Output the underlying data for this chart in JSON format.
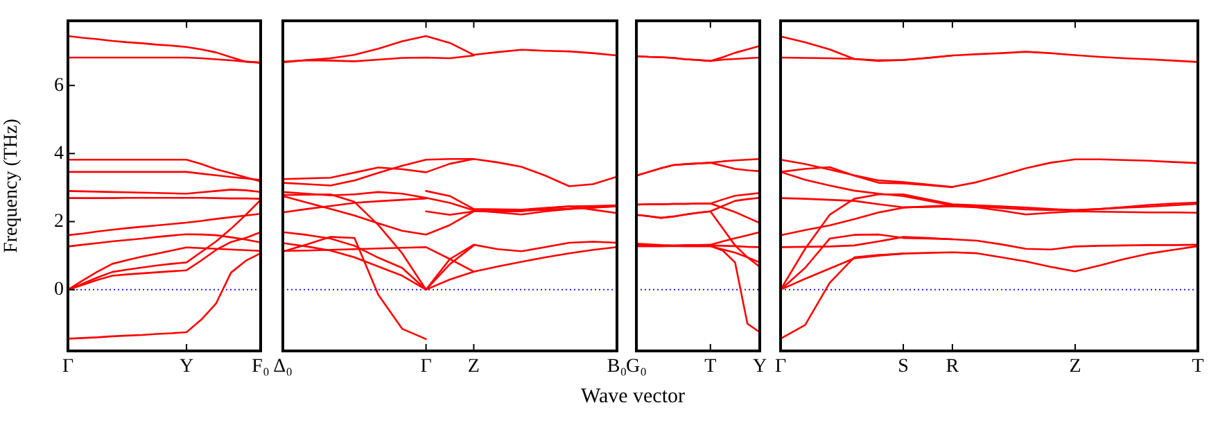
{
  "chart_data": [
    {
      "type": "line",
      "ylabel": "Frequency (THz)",
      "categories": [
        "Γ",
        null,
        null,
        null,
        null,
        null,
        null,
        null,
        "Y",
        null,
        null,
        null,
        null,
        "F₀"
      ],
      "ylim": [
        -1.8,
        7.9
      ],
      "yticks": [
        0,
        2,
        4,
        6
      ],
      "ref_lines": [
        {
          "axis": "y",
          "value": 0,
          "color": "#0000ff",
          "line_style": "dotted"
        }
      ],
      "series": [
        {
          "color": "#ff0000",
          "values": [
            7.45,
            7.4,
            7.36,
            7.31,
            7.27,
            7.24,
            7.2,
            7.17,
            7.13,
            7.06,
            6.97,
            6.83,
            6.7,
            6.67
          ]
        },
        {
          "color": "#ff0000",
          "values": [
            6.82,
            6.82,
            6.82,
            6.82,
            6.82,
            6.82,
            6.82,
            6.82,
            6.82,
            6.8,
            6.77,
            6.74,
            6.7,
            6.67
          ]
        },
        {
          "color": "#ff0000",
          "values": [
            3.82,
            3.82,
            3.82,
            3.82,
            3.82,
            3.82,
            3.82,
            3.82,
            3.82,
            3.69,
            3.54,
            3.42,
            3.3,
            3.18
          ]
        },
        {
          "color": "#ff0000",
          "values": [
            3.46,
            3.46,
            3.46,
            3.46,
            3.46,
            3.46,
            3.46,
            3.46,
            3.46,
            3.41,
            3.36,
            3.31,
            3.27,
            3.22
          ]
        },
        {
          "color": "#ff0000",
          "values": [
            2.9,
            2.89,
            2.88,
            2.87,
            2.86,
            2.85,
            2.84,
            2.83,
            2.82,
            2.86,
            2.9,
            2.94,
            2.92,
            2.87
          ]
        },
        {
          "color": "#ff0000",
          "values": [
            2.69,
            2.69,
            2.69,
            2.69,
            2.7,
            2.7,
            2.7,
            2.7,
            2.7,
            2.7,
            2.69,
            2.68,
            2.68,
            2.67
          ]
        },
        {
          "color": "#ff0000",
          "values": [
            1.6,
            1.65,
            1.71,
            1.76,
            1.81,
            1.85,
            1.89,
            1.93,
            1.97,
            2.02,
            2.08,
            2.13,
            2.18,
            2.23
          ]
        },
        {
          "color": "#ff0000",
          "values": [
            1.27,
            1.32,
            1.37,
            1.42,
            1.46,
            1.5,
            1.55,
            1.59,
            1.63,
            1.62,
            1.6,
            1.54,
            1.47,
            1.39
          ]
        },
        {
          "color": "#ff0000",
          "values": [
            0,
            0.27,
            0.53,
            0.76,
            0.87,
            0.97,
            1.06,
            1.15,
            1.24,
            1.22,
            1.2,
            1.18,
            1.16,
            1.14
          ]
        },
        {
          "color": "#ff0000",
          "values": [
            0,
            0.18,
            0.36,
            0.52,
            0.59,
            0.65,
            0.71,
            0.76,
            0.8,
            1.11,
            1.42,
            1.79,
            2.2,
            2.64
          ]
        },
        {
          "color": "#ff0000",
          "values": [
            0,
            0.14,
            0.29,
            0.41,
            0.45,
            0.48,
            0.51,
            0.54,
            0.57,
            0.86,
            1.17,
            1.4,
            1.52,
            1.69
          ]
        },
        {
          "color": "#ff0000",
          "values": [
            -1.44,
            -1.42,
            -1.4,
            -1.37,
            -1.35,
            -1.33,
            -1.3,
            -1.28,
            -1.25,
            -0.88,
            -0.4,
            0.5,
            0.85,
            1.07
          ]
        }
      ]
    },
    {
      "type": "line",
      "xlabel": "Wave vector",
      "categories": [
        "Δ₀",
        null,
        null,
        null,
        null,
        null,
        "Γ",
        null,
        "Z",
        null,
        null,
        null,
        null,
        null,
        "B₀"
      ],
      "ylim": [
        -1.8,
        7.9
      ],
      "yticks": [
        0,
        2,
        4,
        6
      ],
      "tick_labels": "x",
      "ref_lines": [
        {
          "axis": "y",
          "value": 0,
          "color": "#0000ff",
          "line_style": "dotted"
        }
      ],
      "series": [
        {
          "color": "#ff0000",
          "values": [
            6.68,
            6.75,
            6.8,
            6.9,
            7.08,
            7.3,
            7.45,
            7.25,
            6.9,
            6.98,
            7.05,
            7.02,
            7.0,
            6.95,
            6.88
          ]
        },
        {
          "color": "#ff0000",
          "values": [
            6.7,
            6.74,
            6.73,
            6.71,
            6.76,
            6.81,
            6.82,
            6.8,
            6.88,
            null,
            null,
            null,
            null,
            null,
            null
          ]
        },
        {
          "color": "#ff0000",
          "values": [
            3.25,
            3.27,
            3.29,
            3.44,
            3.59,
            3.54,
            3.45,
            3.7,
            3.84,
            3.74,
            3.61,
            3.35,
            3.04,
            3.1,
            3.32
          ]
        },
        {
          "color": "#ff0000",
          "values": [
            3.14,
            3.1,
            3.06,
            3.21,
            3.43,
            3.64,
            3.82,
            3.84,
            3.84,
            null,
            null,
            null,
            null,
            null,
            null
          ]
        },
        {
          "color": "#ff0000",
          "values": [
            2.87,
            2.82,
            2.77,
            2.8,
            2.87,
            2.82,
            2.7,
            2.55,
            2.33,
            2.27,
            2.21,
            2.3,
            2.37,
            2.41,
            2.45
          ]
        },
        {
          "color": "#ff0000",
          "values": [
            2.78,
            2.79,
            2.8,
            2.58,
            1.9,
            1.07,
            0,
            0.9,
            1.32,
            1.19,
            1.13,
            1.25,
            1.38,
            1.41,
            1.38
          ]
        },
        {
          "color": "#ff0000",
          "values": [
            2.27,
            2.37,
            2.46,
            2.55,
            2.6,
            2.64,
            2.68,
            null,
            null,
            null,
            null,
            null,
            null,
            null,
            null
          ]
        },
        {
          "color": "#ff0000",
          "values": [
            2.75,
            2.56,
            2.37,
            2.18,
            1.95,
            1.73,
            1.62,
            1.9,
            2.3,
            2.31,
            2.32,
            2.35,
            2.38,
            2.42,
            2.45
          ]
        },
        {
          "color": "#ff0000",
          "values": [
            1.69,
            1.61,
            1.5,
            1.29,
            0.94,
            0.64,
            0,
            0.75,
            1.3,
            null,
            null,
            null,
            null,
            null,
            null
          ]
        },
        {
          "color": "#ff0000",
          "values": [
            1.37,
            1.27,
            1.15,
            0.95,
            0.68,
            0.41,
            0,
            0.3,
            0.53,
            0.68,
            0.82,
            0.95,
            1.07,
            1.17,
            1.25
          ]
        },
        {
          "color": "#ff0000",
          "values": [
            1.12,
            1.33,
            1.55,
            1.52,
            -0.15,
            -1.15,
            -1.45,
            null,
            null,
            null,
            null,
            null,
            null,
            null,
            null
          ]
        },
        {
          "color": "#ff0000",
          "values": [
            1.14,
            1.15,
            1.17,
            1.19,
            1.21,
            1.23,
            1.25,
            0.9,
            0.53,
            null,
            null,
            null,
            null,
            null,
            null
          ]
        },
        {
          "color": "#ff0000",
          "values": [
            null,
            null,
            null,
            null,
            null,
            null,
            2.9,
            2.75,
            2.37,
            2.36,
            2.35,
            2.4,
            2.45,
            2.46,
            2.48
          ]
        },
        {
          "color": "#ff0000",
          "values": [
            null,
            null,
            null,
            null,
            null,
            null,
            2.3,
            2.2,
            2.3,
            2.3,
            2.3,
            2.39,
            2.45,
            2.35,
            2.25
          ]
        }
      ]
    },
    {
      "type": "line",
      "categories": [
        "G₀",
        null,
        null,
        null,
        null,
        null,
        "T",
        null,
        null,
        null,
        "Y"
      ],
      "ylim": [
        -1.8,
        7.9
      ],
      "yticks": [
        0,
        2,
        4,
        6
      ],
      "tick_labels": "x",
      "ref_lines": [
        {
          "axis": "y",
          "value": 0,
          "color": "#0000ff",
          "line_style": "dotted"
        }
      ],
      "series": [
        {
          "color": "#ff0000",
          "values": [
            6.86,
            6.84,
            6.83,
            6.81,
            6.77,
            6.75,
            6.72,
            6.83,
            6.96,
            7.06,
            7.16
          ]
        },
        {
          "color": "#ff0000",
          "values": [
            6.86,
            6.84,
            6.83,
            6.81,
            6.77,
            6.75,
            6.72,
            6.76,
            6.78,
            6.8,
            6.82
          ]
        },
        {
          "color": "#ff0000",
          "values": [
            3.35,
            3.46,
            3.57,
            3.66,
            3.69,
            3.71,
            3.73,
            3.77,
            3.8,
            3.82,
            3.84
          ]
        },
        {
          "color": "#ff0000",
          "values": [
            3.35,
            3.46,
            3.57,
            3.66,
            3.69,
            3.71,
            3.73,
            3.64,
            3.55,
            3.51,
            3.48
          ]
        },
        {
          "color": "#ff0000",
          "values": [
            2.5,
            2.51,
            2.51,
            2.52,
            2.52,
            2.53,
            2.53,
            2.65,
            2.76,
            2.8,
            2.84
          ]
        },
        {
          "color": "#ff0000",
          "values": [
            2.5,
            2.51,
            2.51,
            2.52,
            2.52,
            2.53,
            2.53,
            2.41,
            2.28,
            2.12,
            1.96
          ]
        },
        {
          "color": "#ff0000",
          "values": [
            2.2,
            2.16,
            2.11,
            2.15,
            2.21,
            2.26,
            2.3,
            2.46,
            2.61,
            2.66,
            2.7
          ]
        },
        {
          "color": "#ff0000",
          "values": [
            2.2,
            2.16,
            2.11,
            2.15,
            2.21,
            2.26,
            2.3,
            1.8,
            1.3,
            0.95,
            0.67
          ]
        },
        {
          "color": "#ff0000",
          "values": [
            1.35,
            1.33,
            1.31,
            1.3,
            1.31,
            1.31,
            1.32,
            1.42,
            1.51,
            1.6,
            1.69
          ]
        },
        {
          "color": "#ff0000",
          "values": [
            1.28,
            1.28,
            1.28,
            1.29,
            1.29,
            1.3,
            1.3,
            1.29,
            1.28,
            1.26,
            1.25
          ]
        },
        {
          "color": "#ff0000",
          "values": [
            1.3,
            1.3,
            1.29,
            1.29,
            1.28,
            1.28,
            1.28,
            1.18,
            1.09,
            0.95,
            0.8
          ]
        },
        {
          "color": "#ff0000",
          "values": [
            1.28,
            1.28,
            1.28,
            1.28,
            1.28,
            1.28,
            1.28,
            1.15,
            0.8,
            -1.0,
            -1.25
          ]
        }
      ]
    },
    {
      "type": "line",
      "categories": [
        "Γ",
        null,
        null,
        null,
        null,
        "S",
        null,
        "R",
        null,
        null,
        null,
        null,
        "Z",
        null,
        null,
        null,
        null,
        "T"
      ],
      "ylim": [
        -1.8,
        7.9
      ],
      "yticks": [
        0,
        2,
        4,
        6
      ],
      "tick_labels": "x",
      "ref_lines": [
        {
          "axis": "y",
          "value": 0,
          "color": "#0000ff",
          "line_style": "dotted"
        }
      ],
      "series": [
        {
          "color": "#ff0000",
          "values": [
            7.44,
            7.27,
            7.06,
            6.78,
            6.72,
            6.75,
            6.81,
            6.88,
            6.92,
            6.95,
            6.99,
            6.95,
            6.89,
            6.84,
            6.8,
            6.77,
            6.73,
            6.69
          ]
        },
        {
          "color": "#ff0000",
          "values": [
            6.82,
            6.81,
            6.8,
            6.78,
            6.74,
            6.75,
            6.81,
            6.88,
            null,
            null,
            null,
            null,
            null,
            null,
            null,
            null,
            null,
            null
          ]
        },
        {
          "color": "#ff0000",
          "values": [
            3.82,
            3.69,
            3.53,
            3.36,
            3.21,
            3.16,
            3.09,
            3.02,
            3.16,
            3.36,
            3.57,
            3.73,
            3.83,
            3.83,
            3.81,
            3.79,
            3.75,
            3.72
          ]
        },
        {
          "color": "#ff0000",
          "values": [
            3.46,
            3.55,
            3.6,
            3.35,
            3.14,
            3.12,
            3.07,
            3.01,
            null,
            null,
            null,
            null,
            null,
            null,
            null,
            null,
            null,
            null
          ]
        },
        {
          "color": "#ff0000",
          "values": [
            3.46,
            3.23,
            3.06,
            2.91,
            2.82,
            2.75,
            2.61,
            2.48,
            2.45,
            2.4,
            2.36,
            2.34,
            2.33,
            2.37,
            2.41,
            2.44,
            2.48,
            2.52
          ]
        },
        {
          "color": "#ff0000",
          "values": [
            2.69,
            2.67,
            2.64,
            2.61,
            2.51,
            2.42,
            2.43,
            2.45,
            2.42,
            2.32,
            2.21,
            2.26,
            2.3,
            2.29,
            2.28,
            2.27,
            2.27,
            2.26
          ]
        },
        {
          "color": "#ff0000",
          "values": [
            0,
            1.2,
            2.2,
            2.67,
            2.8,
            2.8,
            2.65,
            2.51,
            2.48,
            2.45,
            2.41,
            2.37,
            2.34,
            2.37,
            2.43,
            2.49,
            2.53,
            2.56
          ]
        },
        {
          "color": "#ff0000",
          "values": [
            1.6,
            1.75,
            1.89,
            2.07,
            2.27,
            2.41,
            2.45,
            2.48,
            null,
            null,
            null,
            null,
            null,
            null,
            null,
            null,
            null,
            null
          ]
        },
        {
          "color": "#ff0000",
          "values": [
            1.25,
            1.26,
            1.27,
            1.3,
            1.42,
            1.55,
            1.52,
            1.48,
            1.44,
            1.33,
            1.2,
            1.18,
            1.27,
            1.29,
            1.3,
            1.31,
            1.31,
            1.32
          ]
        },
        {
          "color": "#ff0000",
          "values": [
            0,
            0.64,
            1.5,
            1.61,
            1.62,
            1.52,
            1.5,
            1.48,
            null,
            null,
            null,
            null,
            null,
            null,
            null,
            null,
            null,
            null
          ]
        },
        {
          "color": "#ff0000",
          "values": [
            0,
            0.32,
            0.62,
            0.92,
            1.0,
            1.06,
            1.08,
            1.1,
            1.07,
            0.95,
            0.83,
            0.67,
            0.54,
            0.71,
            0.9,
            1.06,
            1.17,
            1.28
          ]
        },
        {
          "color": "#ff0000",
          "values": [
            -1.44,
            -1.04,
            0.2,
            0.95,
            1.02,
            1.06,
            null,
            null,
            null,
            null,
            null,
            null,
            null,
            null,
            null,
            null,
            null,
            null
          ]
        }
      ]
    }
  ]
}
